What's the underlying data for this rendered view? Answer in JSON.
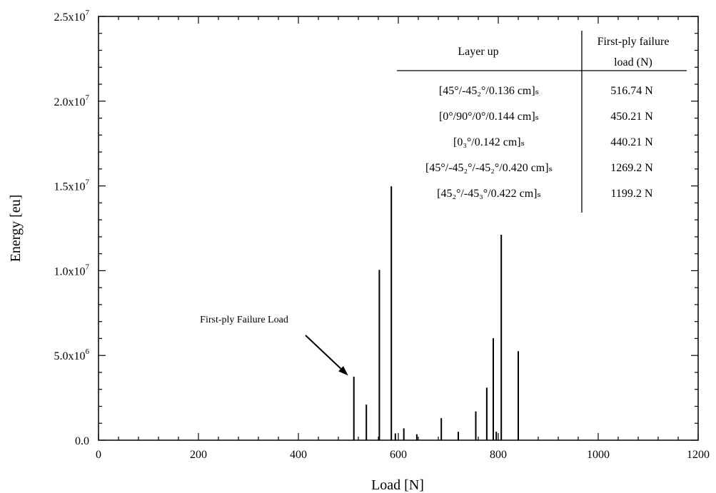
{
  "chart_data": {
    "type": "bar",
    "xlabel": "Load  [N]",
    "ylabel": "Energy  [eu]",
    "xlim": [
      0,
      1200
    ],
    "ylim": [
      0,
      25000000
    ],
    "grid": false,
    "legend": "none",
    "x_ticks": [
      {
        "value": 0,
        "label": "0"
      },
      {
        "value": 200,
        "label": "200"
      },
      {
        "value": 400,
        "label": "400"
      },
      {
        "value": 600,
        "label": "600"
      },
      {
        "value": 800,
        "label": "800"
      },
      {
        "value": 1000,
        "label": "1000"
      },
      {
        "value": 1200,
        "label": "1200"
      }
    ],
    "y_ticks": [
      {
        "value": 0,
        "base": "0.0",
        "exp": ""
      },
      {
        "value": 5000000,
        "base": "5.0x10",
        "exp": "6"
      },
      {
        "value": 10000000,
        "base": "1.0x10",
        "exp": "7"
      },
      {
        "value": 15000000,
        "base": "1.5x10",
        "exp": "7"
      },
      {
        "value": 20000000,
        "base": "2.0x10",
        "exp": "7"
      },
      {
        "value": 25000000,
        "base": "2.5x10",
        "exp": "7"
      }
    ],
    "x": [
      511,
      536,
      562,
      586,
      594,
      611,
      637,
      686,
      720,
      755,
      777,
      790,
      796,
      806,
      840
    ],
    "values": [
      3750000,
      2100000,
      10050000,
      14980000,
      400000,
      700000,
      350000,
      1300000,
      500000,
      1700000,
      3100000,
      6020000,
      500000,
      12120000,
      5250000
    ],
    "annotation": {
      "text": "First-ply Failure Load",
      "target_x": 511,
      "target_y": 3900000
    },
    "table": {
      "headers": {
        "layup": "Layer up",
        "load_line1": "First-ply failure",
        "load_line2": "load (N)"
      },
      "rows": [
        {
          "layup": "[45°/-45₂°/0.136 cm]ₛ",
          "load": "516.74 N"
        },
        {
          "layup": "[0°/90°/0°/0.144 cm]ₛ",
          "load": "450.21 N"
        },
        {
          "layup": "[0₃°/0.142 cm]ₛ",
          "load": "440.21 N"
        },
        {
          "layup": "[45°/-45₂°/-45₂°/0.420 cm]ₛ",
          "load": "1269.2 N"
        },
        {
          "layup": "[45₂°/-45₃°/0.422 cm]ₛ",
          "load": "1199.2 N"
        }
      ]
    }
  }
}
